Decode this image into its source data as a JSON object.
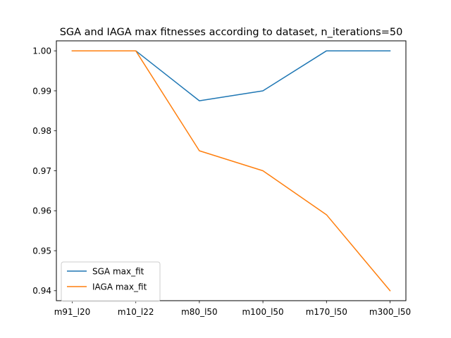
{
  "chart_data": {
    "type": "line",
    "title": "SGA and IAGA max fitnesses according to dataset, n_iterations=50",
    "xlabel": "",
    "ylabel": "",
    "categories": [
      "m91_l20",
      "m10_l22",
      "m80_l50",
      "m100_l50",
      "m170_l50",
      "m300_l50"
    ],
    "series": [
      {
        "name": "SGA max_fit",
        "color": "#1f77b4",
        "values": [
          1.0,
          1.0,
          0.9875,
          0.99,
          1.0,
          1.0
        ]
      },
      {
        "name": "IAGA max_fit",
        "color": "#ff7f0e",
        "values": [
          1.0,
          1.0,
          0.975,
          0.97,
          0.959,
          0.94
        ]
      }
    ],
    "ylim": [
      0.9375,
      1.0025
    ],
    "yticks": [
      "0.94",
      "0.95",
      "0.96",
      "0.97",
      "0.98",
      "0.99",
      "1.00"
    ],
    "grid": false,
    "legend_position": "lower-left"
  }
}
